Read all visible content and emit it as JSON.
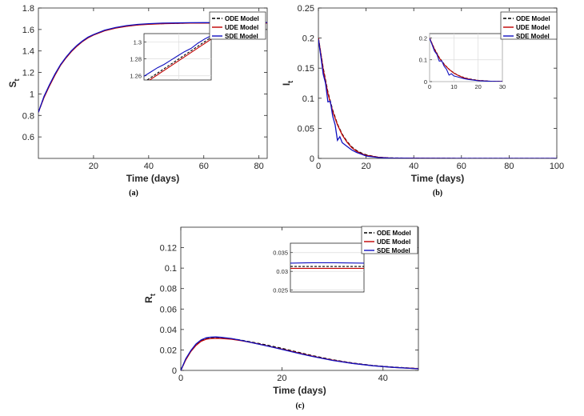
{
  "colors": {
    "ode": "#000000",
    "ude": "#c00000",
    "sde": "#1010c0",
    "grid": "#dcdcdc",
    "axis": "#262626"
  },
  "chart_data": [
    {
      "type": "line",
      "panel": "(a)",
      "caption": "(a)",
      "xlabel": "Time (days)",
      "ylabel_main": "S",
      "ylabel_sub": "t",
      "xlim": [
        0,
        83
      ],
      "ylim": [
        0.4,
        1.8
      ],
      "xticks": [
        20,
        40,
        60,
        80
      ],
      "yticks": [
        0.6,
        0.8,
        1,
        1.2,
        1.4,
        1.6,
        1.8
      ],
      "xtick_labels": [
        "20",
        "40",
        "60",
        "80"
      ],
      "ytick_labels": [
        "0.6",
        "0.8",
        "1",
        "1.2",
        "1.4",
        "1.6",
        "1.8"
      ],
      "legend": [
        "ODE Model",
        "UDE Model",
        "SDE Model"
      ],
      "series": [
        {
          "name": "ODE Model",
          "style": "dashed",
          "x": [
            0,
            2,
            4,
            6,
            8,
            10,
            12,
            14,
            16,
            18,
            20,
            24,
            28,
            32,
            36,
            40,
            45,
            50,
            55,
            60,
            65,
            70,
            75,
            80,
            83
          ],
          "y": [
            0.83,
            0.97,
            1.08,
            1.18,
            1.27,
            1.34,
            1.4,
            1.45,
            1.49,
            1.525,
            1.55,
            1.59,
            1.615,
            1.632,
            1.643,
            1.65,
            1.655,
            1.658,
            1.66,
            1.661,
            1.662,
            1.662,
            1.662,
            1.662,
            1.662
          ]
        },
        {
          "name": "UDE Model",
          "style": "solid",
          "x": [
            0,
            2,
            4,
            6,
            8,
            10,
            12,
            14,
            16,
            18,
            20,
            24,
            28,
            32,
            36,
            40,
            45,
            50,
            55,
            60,
            65,
            70,
            75,
            80,
            83
          ],
          "y": [
            0.83,
            0.965,
            1.075,
            1.175,
            1.265,
            1.335,
            1.395,
            1.445,
            1.488,
            1.522,
            1.548,
            1.588,
            1.613,
            1.63,
            1.642,
            1.649,
            1.654,
            1.657,
            1.659,
            1.66,
            1.661,
            1.661,
            1.661,
            1.661,
            1.661
          ]
        },
        {
          "name": "SDE Model",
          "style": "solid",
          "x": [
            0,
            2,
            4,
            6,
            8,
            10,
            12,
            14,
            16,
            18,
            20,
            24,
            28,
            32,
            36,
            40,
            45,
            50,
            55,
            60,
            65,
            70,
            75,
            80,
            83
          ],
          "y": [
            0.83,
            0.975,
            1.085,
            1.185,
            1.272,
            1.342,
            1.402,
            1.452,
            1.493,
            1.528,
            1.553,
            1.593,
            1.618,
            1.636,
            1.647,
            1.654,
            1.659,
            1.661,
            1.663,
            1.664,
            1.664,
            1.665,
            1.665,
            1.665,
            1.665
          ]
        }
      ],
      "inset": {
        "xlim": [
          0,
          10
        ],
        "ylim": [
          1.255,
          1.31
        ],
        "yticks": [
          1.26,
          1.28,
          1.3
        ],
        "ytick_labels": [
          "1.26",
          "1.28",
          "1.3"
        ],
        "xgrid": [
          5.2
        ],
        "series": [
          {
            "name": "ODE Model",
            "style": "dashed",
            "x": [
              0,
              10
            ],
            "y": [
              1.2525,
              1.3055
            ]
          },
          {
            "name": "UDE Model",
            "style": "solid",
            "x": [
              0,
              10
            ],
            "y": [
              1.2505,
              1.3035
            ]
          },
          {
            "name": "SDE Model",
            "style": "solid",
            "x": [
              0,
              1,
              2,
              3,
              4,
              5,
              6,
              7,
              8,
              9,
              10
            ],
            "y": [
              1.2595,
              1.2645,
              1.2695,
              1.2735,
              1.2785,
              1.2835,
              1.2885,
              1.2925,
              1.2985,
              1.3035,
              1.3075
            ]
          }
        ]
      }
    },
    {
      "type": "line",
      "panel": "(b)",
      "caption": "(b)",
      "xlabel": "Time (days)",
      "ylabel_main": "I",
      "ylabel_sub": "t",
      "xlim": [
        0,
        100
      ],
      "ylim": [
        0,
        0.25
      ],
      "xticks": [
        0,
        20,
        40,
        60,
        80,
        100
      ],
      "yticks": [
        0,
        0.05,
        0.1,
        0.15,
        0.2,
        0.25
      ],
      "xtick_labels": [
        "0",
        "20",
        "40",
        "60",
        "80",
        "100"
      ],
      "ytick_labels": [
        "0",
        "0.05",
        "0.1",
        "0.15",
        "0.2",
        "0.25"
      ],
      "legend": [
        "ODE Model",
        "UDE Model",
        "SDE Model"
      ],
      "series": [
        {
          "name": "ODE Model",
          "style": "dashed",
          "x": [
            0,
            2,
            4,
            6,
            8,
            10,
            12,
            14,
            16,
            18,
            20,
            25,
            30,
            40,
            60,
            80,
            100
          ],
          "y": [
            0.2,
            0.15,
            0.11,
            0.08,
            0.057,
            0.04,
            0.028,
            0.019,
            0.013,
            0.009,
            0.006,
            0.002,
            0.0008,
            0.0002,
            0,
            0,
            0
          ]
        },
        {
          "name": "UDE Model",
          "style": "solid",
          "x": [
            0,
            2,
            4,
            6,
            8,
            10,
            12,
            14,
            16,
            18,
            20,
            25,
            30,
            40,
            60,
            80,
            100
          ],
          "y": [
            0.2,
            0.148,
            0.108,
            0.078,
            0.056,
            0.039,
            0.027,
            0.018,
            0.012,
            0.008,
            0.005,
            0.002,
            0.0007,
            0.0002,
            0,
            0,
            0
          ]
        },
        {
          "name": "SDE Model",
          "style": "solid",
          "x": [
            0,
            1,
            2,
            3,
            4,
            5,
            6,
            7,
            8,
            9,
            10,
            12,
            14,
            16,
            18,
            20,
            25,
            30,
            40,
            60,
            80,
            100
          ],
          "y": [
            0.198,
            0.17,
            0.14,
            0.125,
            0.094,
            0.095,
            0.07,
            0.056,
            0.03,
            0.036,
            0.026,
            0.02,
            0.014,
            0.01,
            0.007,
            0.004,
            0.0015,
            0.0005,
            0.0001,
            0,
            0,
            0
          ]
        }
      ],
      "inset": {
        "xlim": [
          0,
          30
        ],
        "ylim": [
          0,
          0.22
        ],
        "xticks": [
          0,
          10,
          20,
          30
        ],
        "yticks": [
          0,
          0.1,
          0.2
        ],
        "xtick_labels": [
          "0",
          "10",
          "20",
          "30"
        ],
        "ytick_labels": [
          "0",
          "0.1",
          "0.2"
        ],
        "series": [
          {
            "name": "ODE Model",
            "style": "dashed",
            "x": [
              0,
              2,
              4,
              6,
              8,
              10,
              12,
              14,
              16,
              18,
              20,
              25,
              30
            ],
            "y": [
              0.2,
              0.15,
              0.11,
              0.08,
              0.057,
              0.04,
              0.028,
              0.019,
              0.013,
              0.009,
              0.006,
              0.002,
              0.0008
            ]
          },
          {
            "name": "UDE Model",
            "style": "solid",
            "x": [
              0,
              2,
              4,
              6,
              8,
              10,
              12,
              14,
              16,
              18,
              20,
              25,
              30
            ],
            "y": [
              0.2,
              0.148,
              0.108,
              0.078,
              0.056,
              0.039,
              0.027,
              0.018,
              0.012,
              0.008,
              0.005,
              0.002,
              0.0007
            ]
          },
          {
            "name": "SDE Model",
            "style": "solid",
            "x": [
              0,
              1,
              2,
              3,
              4,
              5,
              6,
              7,
              8,
              9,
              10,
              12,
              14,
              16,
              18,
              20,
              25,
              30
            ],
            "y": [
              0.198,
              0.17,
              0.14,
              0.125,
              0.094,
              0.095,
              0.07,
              0.056,
              0.03,
              0.036,
              0.026,
              0.02,
              0.014,
              0.01,
              0.007,
              0.004,
              0.0015,
              0.0005
            ]
          }
        ]
      }
    },
    {
      "type": "line",
      "panel": "(c)",
      "caption": "(c)",
      "xlabel": "Time (days)",
      "ylabel_main": "R",
      "ylabel_sub": "t",
      "xlim": [
        0,
        47
      ],
      "ylim": [
        0,
        0.14
      ],
      "xticks": [
        0,
        20,
        40
      ],
      "yticks": [
        0,
        0.02,
        0.04,
        0.06,
        0.08,
        0.1,
        0.12
      ],
      "xtick_labels": [
        "0",
        "20",
        "40"
      ],
      "ytick_labels": [
        "0",
        "0.02",
        "0.04",
        "0.06",
        "0.08",
        "0.1",
        "0.12"
      ],
      "legend": [
        "ODE Model",
        "UDE Model",
        "SDE Model"
      ],
      "series": [
        {
          "name": "ODE Model",
          "style": "dashed",
          "x": [
            0,
            1,
            2,
            3,
            4,
            5,
            6,
            7,
            8,
            10,
            12,
            14,
            16,
            18,
            20,
            22,
            24,
            26,
            28,
            30,
            34,
            38,
            42,
            47
          ],
          "y": [
            0,
            0.011,
            0.019,
            0.025,
            0.029,
            0.031,
            0.0318,
            0.032,
            0.0318,
            0.031,
            0.0295,
            0.0277,
            0.0258,
            0.0237,
            0.0216,
            0.0192,
            0.0168,
            0.0145,
            0.0124,
            0.0104,
            0.0072,
            0.0048,
            0.0032,
            0.0018
          ]
        },
        {
          "name": "UDE Model",
          "style": "solid",
          "x": [
            0,
            1,
            2,
            3,
            4,
            5,
            6,
            7,
            8,
            10,
            12,
            14,
            16,
            18,
            20,
            22,
            24,
            26,
            28,
            30,
            34,
            38,
            42,
            47
          ],
          "y": [
            0,
            0.0105,
            0.0185,
            0.0245,
            0.0285,
            0.0305,
            0.0312,
            0.0314,
            0.0312,
            0.0305,
            0.029,
            0.0272,
            0.0252,
            0.023,
            0.0208,
            0.0185,
            0.0162,
            0.014,
            0.012,
            0.01,
            0.0069,
            0.0046,
            0.003,
            0.0017
          ]
        },
        {
          "name": "SDE Model",
          "style": "solid",
          "x": [
            0,
            1,
            2,
            3,
            4,
            5,
            6,
            7,
            8,
            10,
            12,
            14,
            16,
            18,
            20,
            22,
            24,
            26,
            28,
            30,
            34,
            38,
            42,
            47
          ],
          "y": [
            0,
            0.0115,
            0.0195,
            0.0258,
            0.0298,
            0.0318,
            0.0325,
            0.0327,
            0.0323,
            0.0312,
            0.0293,
            0.0272,
            0.025,
            0.0228,
            0.0205,
            0.0182,
            0.0158,
            0.0137,
            0.0117,
            0.0098,
            0.0068,
            0.0045,
            0.003,
            0.0016
          ]
        }
      ],
      "inset": {
        "xlim": [
          0,
          10
        ],
        "ylim": [
          0.0245,
          0.0375
        ],
        "yticks": [
          0.025,
          0.03,
          0.035
        ],
        "ytick_labels": [
          "0.025",
          "0.03",
          "0.035"
        ],
        "series": [
          {
            "name": "ODE Model",
            "style": "dashed",
            "x": [
              0,
              10
            ],
            "y": [
              0.0313,
              0.0313
            ]
          },
          {
            "name": "UDE Model",
            "style": "solid",
            "x": [
              0,
              10
            ],
            "y": [
              0.0308,
              0.0308
            ]
          },
          {
            "name": "SDE Model",
            "style": "solid",
            "x": [
              0,
              3,
              6,
              10
            ],
            "y": [
              0.0322,
              0.0323,
              0.0323,
              0.0322
            ]
          }
        ]
      }
    }
  ]
}
